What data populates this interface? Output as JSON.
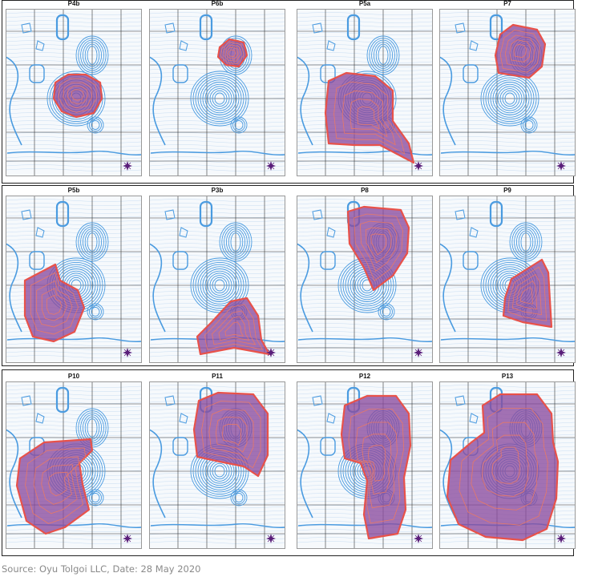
{
  "panels": [
    {
      "label": "P4b",
      "pit": "south-small"
    },
    {
      "label": "P6b",
      "pit": "north-small"
    },
    {
      "label": "P5a",
      "pit": "south-large"
    },
    {
      "label": "P7",
      "pit": "north-med"
    },
    {
      "label": "P5b",
      "pit": "sw-chunk"
    },
    {
      "label": "P3b",
      "pit": "se-chunk"
    },
    {
      "label": "P8",
      "pit": "north-drop"
    },
    {
      "label": "P9",
      "pit": "east-wedge"
    },
    {
      "label": "P10",
      "pit": "west-wide"
    },
    {
      "label": "P11",
      "pit": "north-big"
    },
    {
      "label": "P12",
      "pit": "east-tall"
    },
    {
      "label": "P13",
      "pit": "full"
    }
  ],
  "source": "Source: Oyu Tolgoi LLC, Date: 28 May 2020",
  "colors": {
    "contour": "#4a9be0",
    "grid": "#333333",
    "pit_fill": "#8a4a9e",
    "pit_edge": "#e8524a",
    "compass": "#5a1f7a",
    "map_bg": "#f3f7fb"
  }
}
